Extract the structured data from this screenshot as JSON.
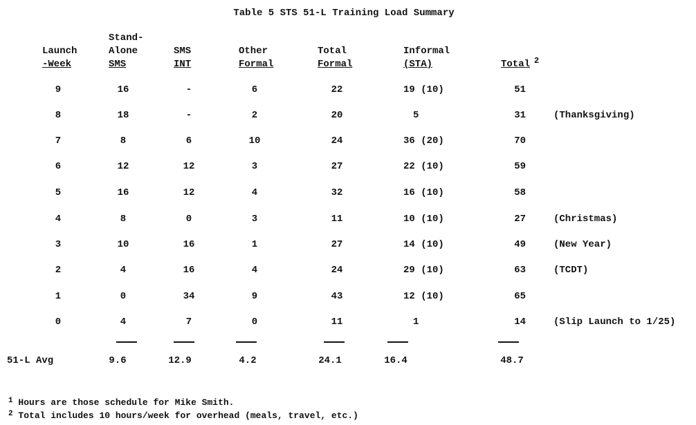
{
  "title": "Table 5 STS 51-L Training Load Summary",
  "headers": [
    {
      "line1": "",
      "line2": "Launch",
      "line3": "-Week"
    },
    {
      "line1": "Stand-",
      "line2": "Alone",
      "line3": "SMS"
    },
    {
      "line1": "",
      "line2": "SMS",
      "line3": "INT"
    },
    {
      "line1": "",
      "line2": "Other",
      "line3": "Formal"
    },
    {
      "line1": "",
      "line2": "Total",
      "line3": "Formal"
    },
    {
      "line1": "",
      "line2": "Informal",
      "line3": "(STA)"
    },
    {
      "line1": "",
      "line2": "",
      "line3": "Total",
      "sup": "2"
    }
  ],
  "rows": [
    {
      "week": "9",
      "standalone": "16",
      "sms_int": "-",
      "other": "6",
      "total_formal": "22",
      "informal": "19 (10)",
      "total": "51",
      "note": ""
    },
    {
      "week": "8",
      "standalone": "18",
      "sms_int": "-",
      "other": "2",
      "total_formal": "20",
      "informal": "5",
      "total": "31",
      "note": "(Thanksgiving)"
    },
    {
      "week": "7",
      "standalone": "8",
      "sms_int": "6",
      "other": "10",
      "total_formal": "24",
      "informal": "36 (20)",
      "total": "70",
      "note": ""
    },
    {
      "week": "6",
      "standalone": "12",
      "sms_int": "12",
      "other": "3",
      "total_formal": "27",
      "informal": "22 (10)",
      "total": "59",
      "note": ""
    },
    {
      "week": "5",
      "standalone": "16",
      "sms_int": "12",
      "other": "4",
      "total_formal": "32",
      "informal": "16 (10)",
      "total": "58",
      "note": ""
    },
    {
      "week": "4",
      "standalone": "8",
      "sms_int": "0",
      "other": "3",
      "total_formal": "11",
      "informal": "10 (10)",
      "total": "27",
      "note": "(Christmas)"
    },
    {
      "week": "3",
      "standalone": "10",
      "sms_int": "16",
      "other": "1",
      "total_formal": "27",
      "informal": "14 (10)",
      "total": "49",
      "note": "(New Year)"
    },
    {
      "week": "2",
      "standalone": "4",
      "sms_int": "16",
      "other": "4",
      "total_formal": "24",
      "informal": "29 (10)",
      "total": "63",
      "note": "(TCDT)"
    },
    {
      "week": "1",
      "standalone": "0",
      "sms_int": "34",
      "other": "9",
      "total_formal": "43",
      "informal": "12 (10)",
      "total": "65",
      "note": ""
    },
    {
      "week": "0",
      "standalone": "4",
      "sms_int": "7",
      "other": "0",
      "total_formal": "11",
      "informal": "1",
      "total": "14",
      "note": "(Slip Launch to 1/25)"
    }
  ],
  "average": {
    "label": "51-L Avg",
    "standalone": "9.6",
    "sms_int": "12.9",
    "other": "4.2",
    "total_formal": "24.1",
    "informal": "16.4",
    "total": "48.7"
  },
  "footnotes": [
    {
      "mark": "1",
      "text": "Hours are those schedule for Mike Smith."
    },
    {
      "mark": "2",
      "text": "Total includes 10 hours/week for overhead (meals, travel, etc.)"
    }
  ]
}
